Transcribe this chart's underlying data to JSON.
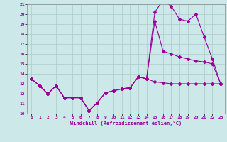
{
  "xlabel": "Windchill (Refroidissement éolien,°C)",
  "xlim": [
    -0.5,
    23.5
  ],
  "ylim": [
    10,
    21
  ],
  "yticks": [
    10,
    11,
    12,
    13,
    14,
    15,
    16,
    17,
    18,
    19,
    20,
    21
  ],
  "xticks": [
    0,
    1,
    2,
    3,
    4,
    5,
    6,
    7,
    8,
    9,
    10,
    11,
    12,
    13,
    14,
    15,
    16,
    17,
    18,
    19,
    20,
    21,
    22,
    23
  ],
  "bg_color": "#cce8e8",
  "grid_color": "#aacccc",
  "line_color": "#990099",
  "line1_x": [
    0,
    1,
    2,
    3,
    4,
    5,
    6,
    7,
    8,
    9,
    10,
    11,
    12,
    13,
    14,
    15,
    16,
    17,
    18,
    19,
    20,
    21,
    22,
    23
  ],
  "line1_y": [
    13.5,
    12.8,
    12.0,
    12.8,
    11.6,
    11.6,
    11.6,
    10.3,
    11.1,
    12.1,
    12.3,
    12.5,
    12.6,
    13.7,
    13.5,
    13.2,
    13.1,
    13.0,
    13.0,
    13.0,
    13.0,
    13.0,
    13.0,
    13.0
  ],
  "line2_x": [
    0,
    1,
    2,
    3,
    4,
    5,
    6,
    7,
    8,
    9,
    10,
    11,
    12,
    13,
    14,
    15,
    16,
    17,
    18,
    19,
    20,
    21,
    22,
    23
  ],
  "line2_y": [
    13.5,
    12.8,
    12.0,
    12.8,
    11.6,
    11.6,
    11.6,
    10.3,
    11.1,
    12.1,
    12.3,
    12.5,
    12.6,
    13.7,
    13.5,
    20.2,
    21.4,
    20.8,
    19.5,
    19.3,
    20.0,
    17.7,
    15.5,
    13.0
  ],
  "line3_x": [
    0,
    1,
    2,
    3,
    4,
    5,
    6,
    7,
    8,
    9,
    10,
    11,
    12,
    13,
    14,
    15,
    16,
    17,
    18,
    19,
    20,
    21,
    22,
    23
  ],
  "line3_y": [
    13.5,
    12.8,
    12.0,
    12.8,
    11.6,
    11.6,
    11.6,
    10.3,
    11.1,
    12.1,
    12.3,
    12.5,
    12.6,
    13.7,
    13.5,
    19.3,
    16.3,
    16.0,
    15.7,
    15.5,
    15.3,
    15.2,
    15.0,
    13.0
  ]
}
